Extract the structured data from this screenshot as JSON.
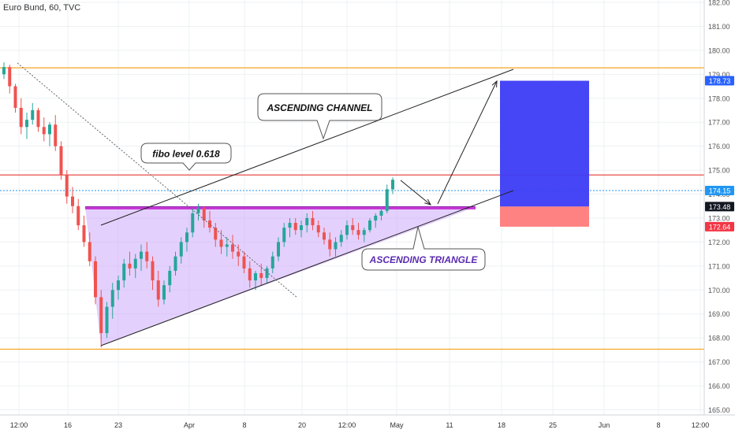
{
  "header": {
    "symbol_title": "Euro Bund, 60, TVC"
  },
  "chart_data": {
    "type": "candlestick",
    "title": "Euro Bund, 60, TVC",
    "y_ticks": [
      "165.00",
      "166.00",
      "167.00",
      "168.00",
      "169.00",
      "170.00",
      "171.00",
      "172.00",
      "173.00",
      "174.00",
      "175.00",
      "176.00",
      "177.00",
      "178.00",
      "179.00",
      "180.00",
      "181.00",
      "182.00"
    ],
    "x_ticks": [
      "12:00",
      "16",
      "23",
      "Apr",
      "8",
      "20",
      "12:00",
      "May",
      "11",
      "18",
      "25",
      "Jun",
      "8",
      "12:00"
    ],
    "ylim": [
      164.6,
      182.1
    ],
    "price_tags": [
      {
        "label": "178.73",
        "value": 178.73,
        "color": "#2962ff"
      },
      {
        "label": "174.15",
        "value": 174.15,
        "color": "#2196f3"
      },
      {
        "label": "173.48",
        "value": 173.48,
        "color": "#131722"
      },
      {
        "label": "172.64",
        "value": 172.64,
        "color": "#f23645"
      }
    ],
    "horizontal_levels": [
      {
        "value": 179.27,
        "color": "#f5a623"
      },
      {
        "value": 167.53,
        "color": "#f5a623"
      },
      {
        "value": 174.8,
        "color": "#e53935"
      },
      {
        "value": 174.15,
        "color": "#2196f3",
        "dashed": true
      }
    ],
    "annotations": [
      {
        "text": "ASCENDING CHANNEL"
      },
      {
        "text": "fibo level 0.618"
      },
      {
        "text": "ASCENDING TRIANGLE"
      }
    ],
    "candles": [
      [
        179.0,
        179.5,
        178.8,
        179.3
      ],
      [
        179.3,
        179.4,
        178.2,
        178.5
      ],
      [
        178.5,
        178.6,
        177.4,
        177.6
      ],
      [
        177.6,
        178.0,
        176.5,
        176.8
      ],
      [
        176.8,
        177.4,
        176.3,
        177.1
      ],
      [
        177.1,
        177.8,
        176.9,
        177.5
      ],
      [
        177.5,
        177.6,
        176.6,
        176.8
      ],
      [
        176.8,
        177.2,
        176.2,
        176.5
      ],
      [
        176.5,
        177.0,
        176.0,
        176.9
      ],
      [
        176.9,
        177.3,
        175.8,
        176.0
      ],
      [
        176.0,
        176.2,
        174.6,
        174.8
      ],
      [
        174.8,
        175.0,
        173.6,
        173.9
      ],
      [
        173.9,
        174.3,
        173.2,
        173.5
      ],
      [
        173.5,
        173.8,
        172.5,
        172.7
      ],
      [
        172.7,
        173.1,
        171.8,
        172.0
      ],
      [
        172.0,
        172.4,
        171.0,
        171.2
      ],
      [
        171.2,
        171.4,
        169.4,
        169.7
      ],
      [
        169.7,
        170.0,
        167.6,
        168.2
      ],
      [
        168.2,
        169.5,
        168.0,
        169.3
      ],
      [
        169.3,
        170.3,
        168.8,
        170.0
      ],
      [
        170.0,
        170.6,
        169.6,
        170.4
      ],
      [
        170.4,
        171.3,
        170.1,
        171.1
      ],
      [
        171.1,
        171.6,
        170.6,
        170.9
      ],
      [
        170.9,
        171.5,
        170.5,
        171.3
      ],
      [
        171.3,
        171.9,
        170.8,
        171.6
      ],
      [
        171.6,
        172.0,
        170.9,
        171.2
      ],
      [
        171.2,
        171.4,
        170.0,
        170.4
      ],
      [
        170.4,
        170.8,
        169.3,
        169.6
      ],
      [
        169.6,
        170.4,
        169.4,
        170.2
      ],
      [
        170.2,
        171.0,
        169.9,
        170.8
      ],
      [
        170.8,
        171.6,
        170.6,
        171.4
      ],
      [
        171.4,
        172.2,
        171.1,
        172.0
      ],
      [
        172.0,
        172.6,
        171.6,
        172.4
      ],
      [
        172.4,
        173.4,
        172.2,
        173.2
      ],
      [
        173.2,
        173.6,
        172.9,
        173.4
      ],
      [
        173.4,
        173.5,
        172.6,
        172.9
      ],
      [
        172.9,
        173.3,
        172.4,
        172.6
      ],
      [
        172.6,
        172.8,
        171.8,
        172.1
      ],
      [
        172.1,
        172.5,
        171.5,
        171.8
      ],
      [
        171.8,
        172.2,
        171.4,
        171.9
      ],
      [
        171.9,
        172.3,
        171.3,
        171.6
      ],
      [
        171.6,
        171.9,
        171.0,
        171.4
      ],
      [
        171.4,
        171.6,
        170.7,
        170.9
      ],
      [
        170.9,
        171.2,
        170.1,
        170.4
      ],
      [
        170.4,
        170.8,
        170.0,
        170.7
      ],
      [
        170.7,
        171.1,
        170.2,
        170.5
      ],
      [
        170.5,
        171.0,
        170.3,
        170.9
      ],
      [
        170.9,
        171.6,
        170.7,
        171.4
      ],
      [
        171.4,
        172.2,
        171.2,
        172.0
      ],
      [
        172.0,
        172.8,
        171.8,
        172.6
      ],
      [
        172.6,
        173.0,
        172.2,
        172.8
      ],
      [
        172.8,
        173.0,
        172.3,
        172.5
      ],
      [
        172.5,
        172.9,
        172.2,
        172.7
      ],
      [
        172.7,
        173.2,
        172.4,
        173.0
      ],
      [
        173.0,
        173.3,
        172.5,
        172.7
      ],
      [
        172.7,
        172.9,
        172.2,
        172.4
      ],
      [
        172.4,
        172.6,
        171.9,
        172.1
      ],
      [
        172.1,
        172.4,
        171.4,
        171.7
      ],
      [
        171.7,
        172.2,
        171.4,
        172.0
      ],
      [
        172.0,
        172.5,
        171.8,
        172.3
      ],
      [
        172.3,
        172.9,
        172.1,
        172.7
      ],
      [
        172.7,
        173.0,
        172.3,
        172.5
      ],
      [
        172.5,
        172.8,
        172.1,
        172.3
      ],
      [
        172.3,
        172.6,
        172.0,
        172.5
      ],
      [
        172.5,
        173.0,
        172.4,
        172.9
      ],
      [
        172.9,
        173.2,
        172.6,
        173.1
      ],
      [
        173.1,
        173.5,
        172.9,
        173.3
      ],
      [
        173.3,
        174.4,
        173.2,
        174.2
      ],
      [
        174.2,
        174.7,
        174.0,
        174.6
      ]
    ]
  }
}
